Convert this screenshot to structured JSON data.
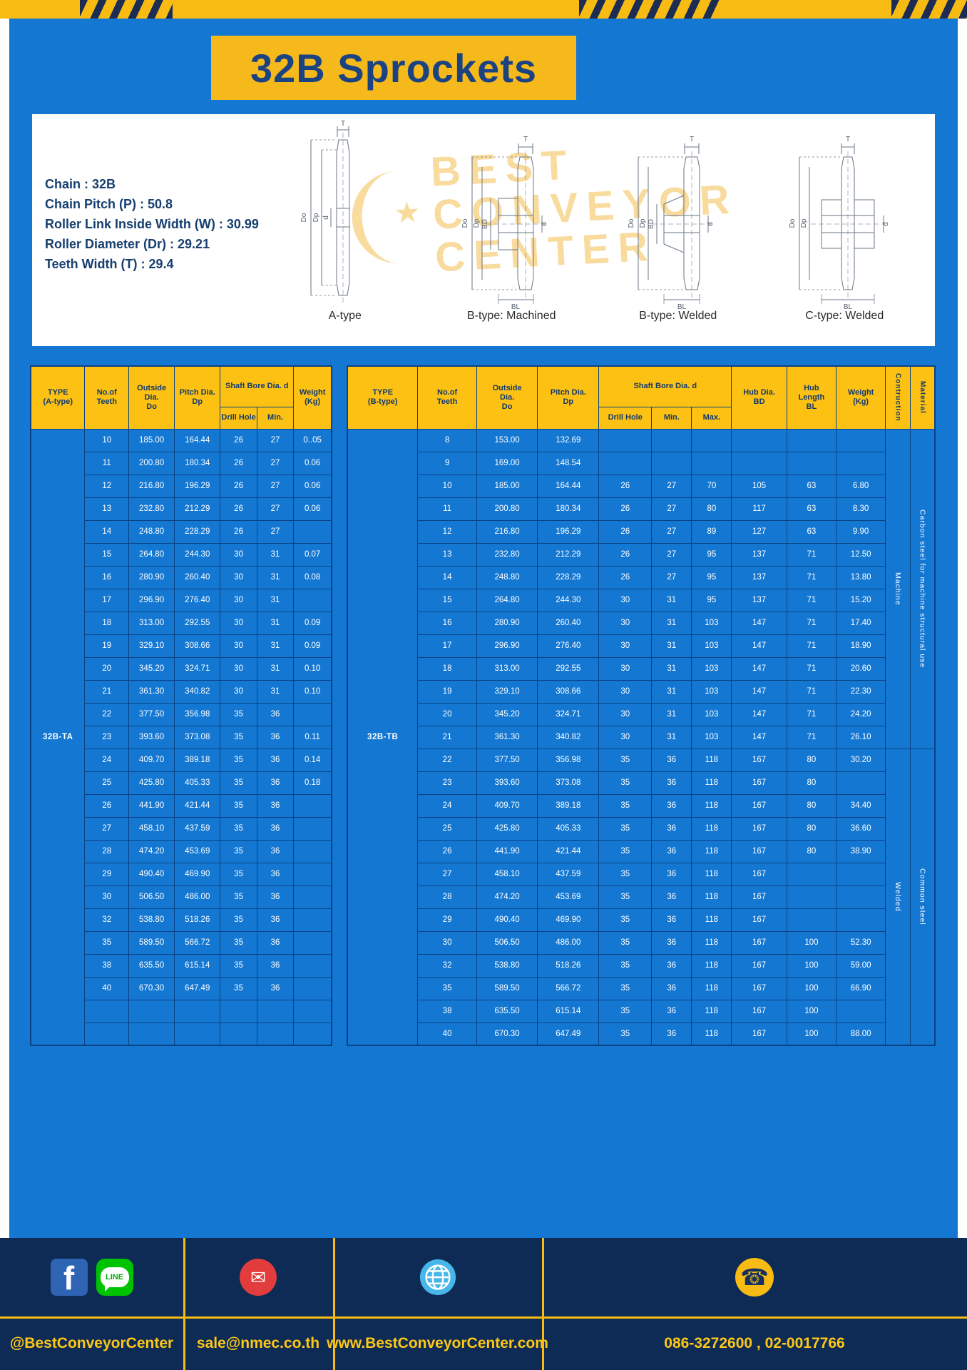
{
  "page": {
    "title": "32B Sprockets"
  },
  "watermark": [
    "BEST",
    "CONVEYOR",
    "CENTER"
  ],
  "specs": {
    "lines": [
      "Chain  :  32B",
      "Chain Pitch (P)  :  50.8",
      "Roller Link Inside Width (W)  :  30.99",
      "Roller Diameter (Dr)  :  29.21",
      "Teeth Width (T)  :  29.4"
    ]
  },
  "diagrams": {
    "labels": [
      "A-type",
      "B-type: Machined",
      "B-type: Welded",
      "C-type: Welded"
    ],
    "dims": {
      "t": "T",
      "do": "Do",
      "dp": "Dp",
      "d": "d",
      "bd": "BD",
      "bl": "BL"
    }
  },
  "table_a": {
    "merged_type": "32B-TA",
    "col_widths": [
      "18%",
      "14.6%",
      "15.2%",
      "15.2%",
      "12.2%",
      "12.2%",
      "12.6%"
    ],
    "header": [
      [
        {
          "label": "TYPE\n(A-type)",
          "rowspan": 2
        },
        {
          "label": "No.of\nTeeth",
          "rowspan": 2
        },
        {
          "label": "Outside\nDia.\nDo",
          "rowspan": 2
        },
        {
          "label": "Pitch Dia.\nDp",
          "rowspan": 2
        },
        {
          "label": "Shaft Bore Dia. d",
          "colspan": 2
        },
        {
          "label": "Weight\n(Kg)",
          "rowspan": 2
        }
      ],
      [
        {
          "label": "Drill Hole"
        },
        {
          "label": "Min."
        }
      ]
    ],
    "rows": [
      [
        "10",
        "185.00",
        "164.44",
        "26",
        "27",
        "0..05"
      ],
      [
        "11",
        "200.80",
        "180.34",
        "26",
        "27",
        "0.06"
      ],
      [
        "12",
        "216.80",
        "196.29",
        "26",
        "27",
        "0.06"
      ],
      [
        "13",
        "232.80",
        "212.29",
        "26",
        "27",
        "0.06"
      ],
      [
        "14",
        "248.80",
        "228.29",
        "26",
        "27",
        ""
      ],
      [
        "15",
        "264.80",
        "244.30",
        "30",
        "31",
        "0.07"
      ],
      [
        "16",
        "280.90",
        "260.40",
        "30",
        "31",
        "0.08"
      ],
      [
        "17",
        "296.90",
        "276.40",
        "30",
        "31",
        ""
      ],
      [
        "18",
        "313.00",
        "292.55",
        "30",
        "31",
        "0.09"
      ],
      [
        "19",
        "329.10",
        "308.66",
        "30",
        "31",
        "0.09"
      ],
      [
        "20",
        "345.20",
        "324.71",
        "30",
        "31",
        "0.10"
      ],
      [
        "21",
        "361.30",
        "340.82",
        "30",
        "31",
        "0.10"
      ],
      [
        "22",
        "377.50",
        "356.98",
        "35",
        "36",
        ""
      ],
      [
        "23",
        "393.60",
        "373.08",
        "35",
        "36",
        "0.11"
      ],
      [
        "24",
        "409.70",
        "389.18",
        "35",
        "36",
        "0.14"
      ],
      [
        "25",
        "425.80",
        "405.33",
        "35",
        "36",
        "0.18"
      ],
      [
        "26",
        "441.90",
        "421.44",
        "35",
        "36",
        ""
      ],
      [
        "27",
        "458.10",
        "437.59",
        "35",
        "36",
        ""
      ],
      [
        "28",
        "474.20",
        "453.69",
        "35",
        "36",
        ""
      ],
      [
        "29",
        "490.40",
        "469.90",
        "35",
        "36",
        ""
      ],
      [
        "30",
        "506.50",
        "486.00",
        "35",
        "36",
        ""
      ],
      [
        "32",
        "538.80",
        "518.26",
        "35",
        "36",
        ""
      ],
      [
        "35",
        "589.50",
        "566.72",
        "35",
        "36",
        ""
      ],
      [
        "38",
        "635.50",
        "615.14",
        "35",
        "36",
        ""
      ],
      [
        "40",
        "670.30",
        "647.49",
        "35",
        "36",
        ""
      ],
      [
        "",
        "",
        "",
        "",
        "",
        ""
      ],
      [
        "",
        "",
        "",
        "",
        "",
        ""
      ]
    ]
  },
  "table_b": {
    "merged_type": "32B-TB",
    "col_widths": [
      "12%",
      "10%",
      "10.4%",
      "10.4%",
      "9%",
      "6.8%",
      "6.8%",
      "9.4%",
      "8.4%",
      "8.4%",
      "4.2%",
      "4.2%"
    ],
    "header": [
      [
        {
          "label": "TYPE\n(B-type)",
          "rowspan": 2
        },
        {
          "label": "No.of\nTeeth",
          "rowspan": 2
        },
        {
          "label": "Outside\nDia.\nDo",
          "rowspan": 2
        },
        {
          "label": "Pitch Dia.\nDp",
          "rowspan": 2
        },
        {
          "label": "Shaft Bore Dia. d",
          "colspan": 3
        },
        {
          "label": "Hub Dia.\nBD",
          "rowspan": 2
        },
        {
          "label": "Hub\nLength\nBL",
          "rowspan": 2
        },
        {
          "label": "Weight\n(Kg)",
          "rowspan": 2
        },
        {
          "label": "Contruction",
          "rowspan": 2,
          "vertical": true
        },
        {
          "label": "Material",
          "rowspan": 2,
          "vertical": true
        }
      ],
      [
        {
          "label": "Drill Hole"
        },
        {
          "label": "Min."
        },
        {
          "label": "Max."
        }
      ]
    ],
    "rows": [
      [
        "8",
        "153.00",
        "132.69",
        "",
        "",
        "",
        "",
        "",
        ""
      ],
      [
        "9",
        "169.00",
        "148.54",
        "",
        "",
        "",
        "",
        "",
        ""
      ],
      [
        "10",
        "185.00",
        "164.44",
        "26",
        "27",
        "70",
        "105",
        "63",
        "6.80"
      ],
      [
        "11",
        "200.80",
        "180.34",
        "26",
        "27",
        "80",
        "117",
        "63",
        "8.30"
      ],
      [
        "12",
        "216.80",
        "196.29",
        "26",
        "27",
        "89",
        "127",
        "63",
        "9.90"
      ],
      [
        "13",
        "232.80",
        "212.29",
        "26",
        "27",
        "95",
        "137",
        "71",
        "12.50"
      ],
      [
        "14",
        "248.80",
        "228.29",
        "26",
        "27",
        "95",
        "137",
        "71",
        "13.80"
      ],
      [
        "15",
        "264.80",
        "244.30",
        "30",
        "31",
        "95",
        "137",
        "71",
        "15.20"
      ],
      [
        "16",
        "280.90",
        "260.40",
        "30",
        "31",
        "103",
        "147",
        "71",
        "17.40"
      ],
      [
        "17",
        "296.90",
        "276.40",
        "30",
        "31",
        "103",
        "147",
        "71",
        "18.90"
      ],
      [
        "18",
        "313.00",
        "292.55",
        "30",
        "31",
        "103",
        "147",
        "71",
        "20.60"
      ],
      [
        "19",
        "329.10",
        "308.66",
        "30",
        "31",
        "103",
        "147",
        "71",
        "22.30"
      ],
      [
        "20",
        "345.20",
        "324.71",
        "30",
        "31",
        "103",
        "147",
        "71",
        "24.20"
      ],
      [
        "21",
        "361.30",
        "340.82",
        "30",
        "31",
        "103",
        "147",
        "71",
        "26.10"
      ],
      [
        "22",
        "377.50",
        "356.98",
        "35",
        "36",
        "118",
        "167",
        "80",
        "30.20"
      ],
      [
        "23",
        "393.60",
        "373.08",
        "35",
        "36",
        "118",
        "167",
        "80",
        ""
      ],
      [
        "24",
        "409.70",
        "389.18",
        "35",
        "36",
        "118",
        "167",
        "80",
        "34.40"
      ],
      [
        "25",
        "425.80",
        "405.33",
        "35",
        "36",
        "118",
        "167",
        "80",
        "36.60"
      ],
      [
        "26",
        "441.90",
        "421.44",
        "35",
        "36",
        "118",
        "167",
        "80",
        "38.90"
      ],
      [
        "27",
        "458.10",
        "437.59",
        "35",
        "36",
        "118",
        "167",
        "",
        ""
      ],
      [
        "28",
        "474.20",
        "453.69",
        "35",
        "36",
        "118",
        "167",
        "",
        ""
      ],
      [
        "29",
        "490.40",
        "469.90",
        "35",
        "36",
        "118",
        "167",
        "",
        ""
      ],
      [
        "30",
        "506.50",
        "486.00",
        "35",
        "36",
        "118",
        "167",
        "100",
        "52.30"
      ],
      [
        "32",
        "538.80",
        "518.26",
        "35",
        "36",
        "118",
        "167",
        "100",
        "59.00"
      ],
      [
        "35",
        "589.50",
        "566.72",
        "35",
        "36",
        "118",
        "167",
        "100",
        "66.90"
      ],
      [
        "38",
        "635.50",
        "615.14",
        "35",
        "36",
        "118",
        "167",
        "100",
        ""
      ],
      [
        "40",
        "670.30",
        "647.49",
        "35",
        "36",
        "118",
        "167",
        "100",
        "88.00"
      ]
    ],
    "groups": [
      {
        "start": 0,
        "span": 14,
        "cells": [
          {
            "label": "Machine",
            "name": "construction-cell"
          },
          {
            "label": "Carbon steel for machine structural use",
            "name": "material-cell"
          }
        ]
      },
      {
        "start": 14,
        "span": 13,
        "cells": [
          {
            "label": "Welded",
            "name": "construction-cell"
          },
          {
            "label": "Common steel",
            "name": "material-cell"
          }
        ]
      }
    ]
  },
  "footer": {
    "facebook_letter": "f",
    "line_icon_label": "LINE",
    "sections": [
      {
        "text": "@BestConveyorCenter"
      },
      {
        "text": "sale@nmec.co.th"
      },
      {
        "text": "www.BestConveyorCenter.com"
      },
      {
        "text": "086-3272600 , 02-0017766"
      }
    ]
  },
  "colors": {
    "page_blue": "#1478d3",
    "grid_navy": "#0a4284",
    "header_yellow": "#fcc113",
    "banner_yellow": "#f5b91c",
    "hazard_yellow": "#f8bb13",
    "footer_navy": "#0d2b55",
    "footer_text_yellow": "#fdc817",
    "title_navy": "#1b4382"
  }
}
